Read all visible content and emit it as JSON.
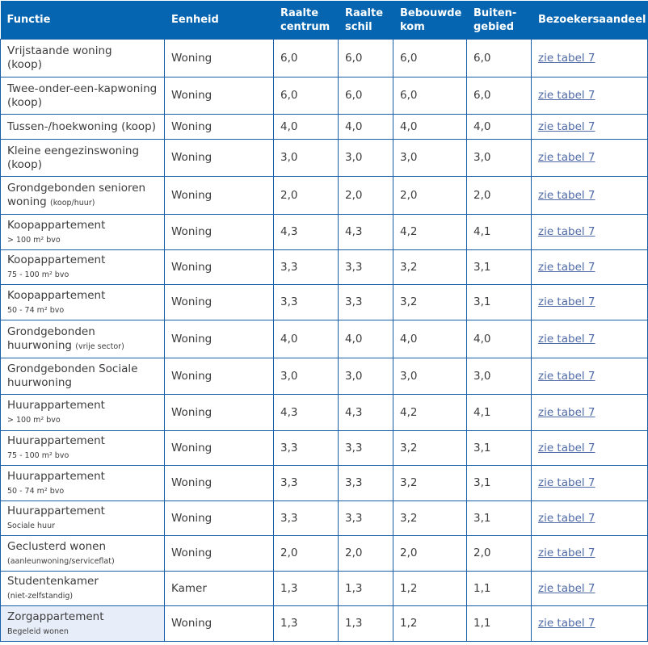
{
  "headers": [
    "Functie",
    "Eenheid",
    "Raalte centrum",
    "Raalte schil",
    "Bebouwde kom",
    "Buiten-gebied",
    "Bezoekersaandeel"
  ],
  "header_lines": [
    [
      "Functie"
    ],
    [
      "Eenheid"
    ],
    [
      "Raalte",
      "centrum"
    ],
    [
      "Raalte",
      "schil"
    ],
    [
      "Bebouwde",
      "kom"
    ],
    [
      "Buiten-",
      "gebied"
    ],
    [
      "Bezoekersaandeel"
    ]
  ],
  "colors": {
    "header_bg": "#0565b0",
    "border": "#1560a8",
    "link": "#4f6aa6",
    "highlight": "#e8eef9"
  },
  "link_label": "zie tabel 7",
  "rows": [
    {
      "functie": "Vrijstaande woning",
      "line2": "(koop)",
      "sub": "",
      "eenheid": "Woning",
      "v": [
        "6,0",
        "6,0",
        "6,0",
        "6,0"
      ],
      "h": 47
    },
    {
      "functie": "Twee-onder-een-kapwoning",
      "line2": "(koop)",
      "sub": "",
      "eenheid": "Woning",
      "v": [
        "6,0",
        "6,0",
        "6,0",
        "6,0"
      ],
      "h": 46
    },
    {
      "functie": "Tussen-/hoekwoning (koop)",
      "line2": "",
      "sub": "",
      "eenheid": "Woning",
      "v": [
        "4,0",
        "4,0",
        "4,0",
        "4,0"
      ],
      "h": 31
    },
    {
      "functie": "Kleine eengezinswoning",
      "line2": "(koop)",
      "sub": "",
      "eenheid": "Woning",
      "v": [
        "3,0",
        "3,0",
        "3,0",
        "3,0"
      ],
      "h": 46
    },
    {
      "functie": "Grondgebonden senioren",
      "line2": "woning",
      "sub": "(koop/huur)",
      "eenheid": "Woning",
      "v": [
        "2,0",
        "2,0",
        "2,0",
        "2,0"
      ],
      "h": 47
    },
    {
      "functie": "Koopappartement",
      "line2": "",
      "sub": "> 100 m² bvo",
      "eenheid": "Woning",
      "v": [
        "4,3",
        "4,3",
        "4,2",
        "4,1"
      ],
      "h": 44
    },
    {
      "functie": "Koopappartement",
      "line2": "",
      "sub": "75 - 100 m² bvo",
      "eenheid": "Woning",
      "v": [
        "3,3",
        "3,3",
        "3,2",
        "3,1"
      ],
      "h": 43
    },
    {
      "functie": "Koopappartement",
      "line2": "",
      "sub": "50 - 74 m² bvo",
      "eenheid": "Woning",
      "v": [
        "3,3",
        "3,3",
        "3,2",
        "3,1"
      ],
      "h": 44
    },
    {
      "functie": "Grondgebonden",
      "line2": "huurwoning",
      "sub": "(vrije sector)",
      "eenheid": "Woning",
      "v": [
        "4,0",
        "4,0",
        "4,0",
        "4,0"
      ],
      "h": 47
    },
    {
      "functie": "Grondgebonden Sociale",
      "line2": "huurwoning",
      "sub": "",
      "eenheid": "Woning",
      "v": [
        "3,0",
        "3,0",
        "3,0",
        "3,0"
      ],
      "h": 45
    },
    {
      "functie": "Huurappartement",
      "line2": "",
      "sub": "> 100 m² bvo",
      "eenheid": "Woning",
      "v": [
        "4,3",
        "4,3",
        "4,2",
        "4,1"
      ],
      "h": 45
    },
    {
      "functie": "Huurappartement",
      "line2": "",
      "sub": "75 - 100 m² bvo",
      "eenheid": "Woning",
      "v": [
        "3,3",
        "3,3",
        "3,2",
        "3,1"
      ],
      "h": 43
    },
    {
      "functie": "Huurappartement",
      "line2": "",
      "sub": "50 - 74 m² bvo",
      "eenheid": "Woning",
      "v": [
        "3,3",
        "3,3",
        "3,2",
        "3,1"
      ],
      "h": 44
    },
    {
      "functie": "Huurappartement",
      "line2": "",
      "sub": "Sociale huur",
      "eenheid": "Woning",
      "v": [
        "3,3",
        "3,3",
        "3,2",
        "3,1"
      ],
      "h": 43
    },
    {
      "functie": "Geclusterd wonen",
      "line2": "",
      "sub": "(aanleunwoning/serviceflat)",
      "eenheid": "Woning",
      "v": [
        "2,0",
        "2,0",
        "2,0",
        "2,0"
      ],
      "h": 44
    },
    {
      "functie": "Studentenkamer",
      "line2": "",
      "sub": "(niet-zelfstandig)",
      "eenheid": "Kamer",
      "v": [
        "1,3",
        "1,3",
        "1,2",
        "1,1"
      ],
      "h": 43
    },
    {
      "functie": "Zorgappartement",
      "line2": "",
      "sub": "Begeleid wonen",
      "eenheid": "Woning",
      "v": [
        "1,3",
        "1,3",
        "1,2",
        "1,1"
      ],
      "h": 44,
      "highlight": true
    }
  ]
}
